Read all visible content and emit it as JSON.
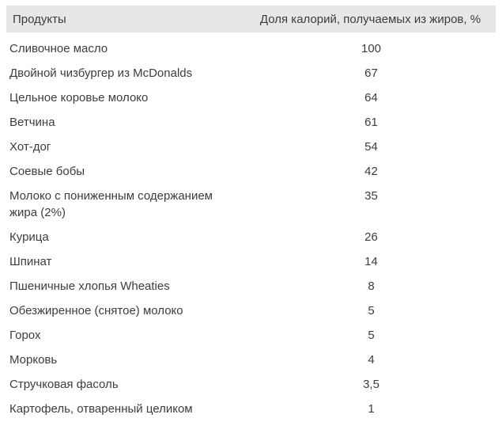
{
  "table": {
    "columns": [
      {
        "label": "Продукты"
      },
      {
        "label": "Доля калорий, получаемых из жиров, %"
      }
    ],
    "rows": [
      {
        "product": "Сливочное масло",
        "value": "100"
      },
      {
        "product": "Двойной чизбургер из McDonalds",
        "value": "67"
      },
      {
        "product": "Цельное коровье молоко",
        "value": "64"
      },
      {
        "product": "Ветчина",
        "value": "61"
      },
      {
        "product": "Хот-дог",
        "value": "54"
      },
      {
        "product": "Соевые бобы",
        "value": "42"
      },
      {
        "product": "Молоко с пониженным содержанием жира (2%)",
        "value": "35"
      },
      {
        "product": "Курица",
        "value": "26"
      },
      {
        "product": "Шпинат",
        "value": "14"
      },
      {
        "product": "Пшеничные хлопья Wheaties",
        "value": "8"
      },
      {
        "product": "Обезжиренное (снятое) молоко",
        "value": "5"
      },
      {
        "product": "Горох",
        "value": "5"
      },
      {
        "product": "Морковь",
        "value": "4"
      },
      {
        "product": "Стручковая фасоль",
        "value": "3,5"
      },
      {
        "product": "Картофель, отваренный целиком",
        "value": "1"
      }
    ]
  },
  "colors": {
    "header_bg": "#e7e7e7",
    "text": "#3d3d3d",
    "page_bg": "#ffffff"
  }
}
